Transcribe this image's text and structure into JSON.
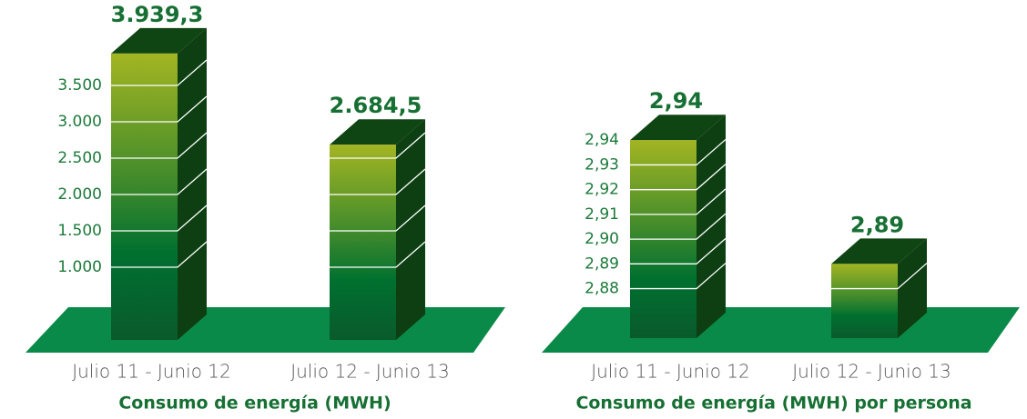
{
  "chart_data": [
    {
      "type": "bar3d",
      "xlabel": "Consumo de energía (MWH)",
      "categories": [
        "Julio 11 - Junio 12",
        "Julio 12 - Junio 13"
      ],
      "values": [
        3939.3,
        2684.5
      ],
      "value_labels": [
        "3.939,3",
        "2.684,5"
      ],
      "ylim": [
        0,
        4000
      ],
      "yticks": [
        {
          "value": 1000,
          "label": "1.000"
        },
        {
          "value": 1500,
          "label": "1.500"
        },
        {
          "value": 2000,
          "label": "2.000"
        },
        {
          "value": 2500,
          "label": "2.500"
        },
        {
          "value": 3000,
          "label": "3.000"
        },
        {
          "value": 3500,
          "label": "3.500"
        }
      ],
      "color": "#0b7a32"
    },
    {
      "type": "bar3d",
      "xlabel": "Consumo de energía (MWH) por persona",
      "categories": [
        "Julio 11 - Junio 12",
        "Julio 12 - Junio 13"
      ],
      "values": [
        2.94,
        2.89
      ],
      "value_labels": [
        "2,94",
        "2,89"
      ],
      "ylim": [
        2.86,
        2.95
      ],
      "yticks": [
        {
          "value": 2.88,
          "label": "2,88"
        },
        {
          "value": 2.89,
          "label": "2,89"
        },
        {
          "value": 2.9,
          "label": "2,90"
        },
        {
          "value": 2.91,
          "label": "2,91"
        },
        {
          "value": 2.92,
          "label": "2,92"
        },
        {
          "value": 2.93,
          "label": "2,93"
        },
        {
          "value": 2.94,
          "label": "2,94"
        }
      ],
      "color": "#0b7a32"
    }
  ]
}
